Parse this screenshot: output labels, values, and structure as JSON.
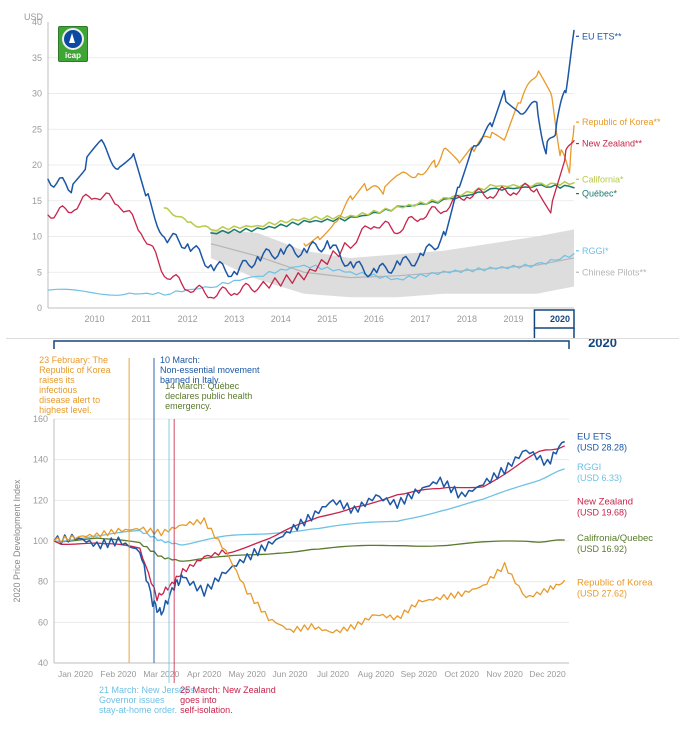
{
  "unit_label": "USD",
  "icap_label": "icap",
  "top_chart": {
    "type": "line",
    "xlim": [
      2009.5,
      2020.8
    ],
    "ylim": [
      0,
      40
    ],
    "ytick_step": 5,
    "xtick_years": [
      2010,
      2011,
      2012,
      2013,
      2014,
      2015,
      2016,
      2017,
      2018,
      2019,
      2020
    ],
    "background_color": "#ffffff",
    "grid_color": "#e6e6e6",
    "axis_color": "#bfbfbf",
    "axis_font_color": "#9a9a9a",
    "axis_fontsize": 9,
    "zoom_box_color": "#14477f",
    "zoom_box_label": "2020",
    "series": [
      {
        "key": "chinese_pilots",
        "label": "Chinese Pilots**",
        "color": "#b5b5b5",
        "type": "area",
        "fill": "#d9d9d9",
        "stroke_width": 1.2,
        "low": [
          [
            2013,
            7
          ],
          [
            2014,
            4
          ],
          [
            2015,
            2
          ],
          [
            2016,
            1.5
          ],
          [
            2017,
            1.5
          ],
          [
            2018,
            2
          ],
          [
            2019,
            2
          ],
          [
            2020,
            2
          ],
          [
            2020.8,
            3
          ]
        ],
        "high": [
          [
            2013,
            11
          ],
          [
            2014,
            10.5
          ],
          [
            2015,
            8
          ],
          [
            2016,
            7
          ],
          [
            2017,
            7.5
          ],
          [
            2018,
            8
          ],
          [
            2019,
            9
          ],
          [
            2020,
            10
          ],
          [
            2020.8,
            11
          ]
        ]
      },
      {
        "key": "rggi",
        "label": "RGGI*",
        "color": "#6fc1e4",
        "stroke_width": 1.2,
        "data": [
          [
            2009.5,
            2.5
          ],
          [
            2011,
            2
          ],
          [
            2012,
            2
          ],
          [
            2013,
            3
          ],
          [
            2014,
            4.5
          ],
          [
            2015,
            6
          ],
          [
            2016,
            5
          ],
          [
            2017,
            4
          ],
          [
            2018,
            5
          ],
          [
            2019,
            5.5
          ],
          [
            2020,
            6
          ],
          [
            2020.8,
            7.5
          ]
        ]
      },
      {
        "key": "quebec",
        "label": "Québec*",
        "color": "#1a7a6e",
        "stroke_width": 1.5,
        "data": [
          [
            2013,
            10.5
          ],
          [
            2014,
            11
          ],
          [
            2015,
            12
          ],
          [
            2016,
            12.5
          ],
          [
            2017,
            14
          ],
          [
            2018,
            15
          ],
          [
            2019,
            16.5
          ],
          [
            2020,
            17
          ],
          [
            2020.8,
            17
          ]
        ]
      },
      {
        "key": "california",
        "label": "California*",
        "color": "#b9c94a",
        "stroke_width": 1.5,
        "data": [
          [
            2012,
            14
          ],
          [
            2012.5,
            12
          ],
          [
            2013,
            11
          ],
          [
            2014,
            11.5
          ],
          [
            2015,
            12.5
          ],
          [
            2016,
            12.8
          ],
          [
            2017,
            14
          ],
          [
            2018,
            15.2
          ],
          [
            2019,
            17
          ],
          [
            2020,
            17.2
          ],
          [
            2020.8,
            17.5
          ]
        ]
      },
      {
        "key": "korea",
        "label": "Republic of Korea**",
        "color": "#e89a2a",
        "stroke_width": 1.3,
        "data": [
          [
            2015,
            9
          ],
          [
            2015.3,
            10
          ],
          [
            2015.6,
            12
          ],
          [
            2016,
            15
          ],
          [
            2016.3,
            17
          ],
          [
            2016.7,
            16
          ],
          [
            2017,
            18
          ],
          [
            2017.4,
            19
          ],
          [
            2017.8,
            20
          ],
          [
            2018,
            22
          ],
          [
            2018.3,
            20
          ],
          [
            2018.6,
            22
          ],
          [
            2019,
            24
          ],
          [
            2019.3,
            23
          ],
          [
            2019.6,
            28
          ],
          [
            2020,
            33
          ],
          [
            2020.3,
            30
          ],
          [
            2020.5,
            22
          ],
          [
            2020.7,
            19
          ],
          [
            2020.8,
            26
          ]
        ]
      },
      {
        "key": "newzealand",
        "label": "New Zealand**",
        "color": "#c8234a",
        "stroke_width": 1.3,
        "data": [
          [
            2009.5,
            13
          ],
          [
            2010,
            14
          ],
          [
            2010.5,
            16
          ],
          [
            2011,
            15
          ],
          [
            2011.5,
            11
          ],
          [
            2012,
            5
          ],
          [
            2012.5,
            3
          ],
          [
            2013,
            2
          ],
          [
            2013.5,
            2.5
          ],
          [
            2014,
            3
          ],
          [
            2015,
            4.5
          ],
          [
            2016,
            9
          ],
          [
            2016.5,
            12
          ],
          [
            2017,
            11
          ],
          [
            2017.5,
            13
          ],
          [
            2018,
            14
          ],
          [
            2018.5,
            16
          ],
          [
            2019,
            16
          ],
          [
            2019.5,
            16.5
          ],
          [
            2020,
            17
          ],
          [
            2020.3,
            14
          ],
          [
            2020.6,
            21
          ],
          [
            2020.8,
            24
          ]
        ]
      },
      {
        "key": "euets",
        "label": "EU ETS**",
        "color": "#1c57a5",
        "stroke_width": 1.5,
        "data": [
          [
            2009.5,
            18
          ],
          [
            2010,
            17
          ],
          [
            2010.3,
            20
          ],
          [
            2010.6,
            23
          ],
          [
            2011,
            20
          ],
          [
            2011.3,
            22
          ],
          [
            2011.6,
            16
          ],
          [
            2012,
            10
          ],
          [
            2012.5,
            9
          ],
          [
            2013,
            6
          ],
          [
            2013.5,
            5
          ],
          [
            2014,
            7
          ],
          [
            2014.5,
            8
          ],
          [
            2015,
            8
          ],
          [
            2015.5,
            9
          ],
          [
            2016,
            6
          ],
          [
            2016.5,
            5
          ],
          [
            2017,
            6
          ],
          [
            2017.5,
            7
          ],
          [
            2018,
            10
          ],
          [
            2018.3,
            17
          ],
          [
            2018.6,
            23
          ],
          [
            2019,
            25
          ],
          [
            2019.3,
            30
          ],
          [
            2019.6,
            28
          ],
          [
            2020,
            28
          ],
          [
            2020.2,
            22
          ],
          [
            2020.4,
            25
          ],
          [
            2020.6,
            30
          ],
          [
            2020.8,
            38
          ]
        ]
      }
    ],
    "legend_order": [
      "euets",
      "korea",
      "newzealand",
      "california",
      "quebec",
      "rggi",
      "chinese_pilots"
    ]
  },
  "bottom_chart": {
    "type": "line",
    "y_axis_label": "2020 Price Development Index",
    "y_axis_label_fontsize": 9,
    "xlim": [
      0,
      12
    ],
    "ylim": [
      40,
      160
    ],
    "ytick_step": 20,
    "months": [
      "Jan 2020",
      "Feb 2020",
      "Mar 2020",
      "Apr 2020",
      "May 2020",
      "Jun 2020",
      "Jul 2020",
      "Aug 2020",
      "Sep 2020",
      "Oct 2020",
      "Nov 2020",
      "Dec 2020"
    ],
    "background_color": "#ffffff",
    "grid_color": "#e6e6e6",
    "axis_color": "#bfbfbf",
    "legend": {
      "euets": {
        "label1": "EU ETS",
        "label2": "(USD 28.28)",
        "color": "#1c57a5"
      },
      "rggi": {
        "label1": "RGGI",
        "label2": "(USD 6.33)",
        "color": "#6fc1e4"
      },
      "nz": {
        "label1": "New Zealand",
        "label2": "(USD 19.68)",
        "color": "#c8234a"
      },
      "caqc": {
        "label1": "Califronia/Quebec",
        "label2": "(USD 16.92)",
        "color": "#5a7a2e"
      },
      "korea": {
        "label1": "Republic of Korea",
        "label2": "(USD 27.62)",
        "color": "#e89a2a"
      }
    },
    "series": [
      {
        "key": "caqc",
        "color": "#5a7a2e",
        "stroke_width": 1.3,
        "data": [
          [
            0,
            100
          ],
          [
            1,
            101
          ],
          [
            2,
            99
          ],
          [
            2.5,
            92
          ],
          [
            3,
            90
          ],
          [
            4,
            92
          ],
          [
            5,
            94
          ],
          [
            6,
            96
          ],
          [
            7,
            97
          ],
          [
            8,
            98
          ],
          [
            9,
            98
          ],
          [
            10,
            99
          ],
          [
            11,
            100
          ],
          [
            11.9,
            100
          ]
        ]
      },
      {
        "key": "rggi",
        "color": "#6fc1e4",
        "stroke_width": 1.3,
        "data": [
          [
            0,
            100
          ],
          [
            1,
            102
          ],
          [
            2,
            105
          ],
          [
            2.5,
            100
          ],
          [
            3,
            98
          ],
          [
            4,
            102
          ],
          [
            5,
            104
          ],
          [
            6,
            106
          ],
          [
            7,
            108
          ],
          [
            8,
            110
          ],
          [
            9,
            115
          ],
          [
            10,
            120
          ],
          [
            11,
            128
          ],
          [
            11.9,
            135
          ]
        ]
      },
      {
        "key": "nz",
        "color": "#c8234a",
        "stroke_width": 1.3,
        "data": [
          [
            0,
            100
          ],
          [
            1,
            98
          ],
          [
            2,
            96
          ],
          [
            2.4,
            72
          ],
          [
            2.7,
            78
          ],
          [
            3,
            85
          ],
          [
            3.5,
            92
          ],
          [
            4,
            95
          ],
          [
            5,
            100
          ],
          [
            6,
            110
          ],
          [
            7,
            118
          ],
          [
            8,
            122
          ],
          [
            9,
            125
          ],
          [
            10,
            128
          ],
          [
            11,
            140
          ],
          [
            11.9,
            148
          ]
        ]
      },
      {
        "key": "euets",
        "color": "#1c57a5",
        "stroke_width": 1.5,
        "data": [
          [
            0,
            100
          ],
          [
            0.5,
            102
          ],
          [
            1,
            98
          ],
          [
            1.5,
            100
          ],
          [
            2,
            95
          ],
          [
            2.3,
            70
          ],
          [
            2.5,
            64
          ],
          [
            2.8,
            78
          ],
          [
            3,
            82
          ],
          [
            3.5,
            75
          ],
          [
            4,
            85
          ],
          [
            4.5,
            92
          ],
          [
            5,
            98
          ],
          [
            5.5,
            105
          ],
          [
            6,
            112
          ],
          [
            6.5,
            120
          ],
          [
            7,
            115
          ],
          [
            7.5,
            122
          ],
          [
            8,
            118
          ],
          [
            8.5,
            125
          ],
          [
            9,
            130
          ],
          [
            9.5,
            122
          ],
          [
            10,
            128
          ],
          [
            10.5,
            135
          ],
          [
            11,
            145
          ],
          [
            11.5,
            138
          ],
          [
            11.9,
            150
          ]
        ]
      },
      {
        "key": "korea",
        "color": "#e89a2a",
        "stroke_width": 1.3,
        "data": [
          [
            0,
            100
          ],
          [
            0.5,
            102
          ],
          [
            1,
            103
          ],
          [
            1.5,
            105
          ],
          [
            2,
            106
          ],
          [
            2.5,
            104
          ],
          [
            3,
            108
          ],
          [
            3.5,
            110
          ],
          [
            4,
            95
          ],
          [
            4.5,
            75
          ],
          [
            5,
            62
          ],
          [
            5.5,
            56
          ],
          [
            6,
            58
          ],
          [
            6.5,
            55
          ],
          [
            7,
            58
          ],
          [
            7.5,
            64
          ],
          [
            8,
            62
          ],
          [
            8.5,
            70
          ],
          [
            9,
            72
          ],
          [
            9.5,
            74
          ],
          [
            10,
            78
          ],
          [
            10.5,
            88
          ],
          [
            11,
            72
          ],
          [
            11.5,
            76
          ],
          [
            11.9,
            80
          ]
        ]
      }
    ],
    "annotations_top": [
      {
        "key": "korea_alert",
        "color": "#e89a2a",
        "x": 1.75,
        "text": "23 February: The Republic of Korea raises its infectious disease alert to highest level."
      },
      {
        "key": "italy",
        "color": "#1c57a5",
        "x": 2.33,
        "text": "10 March: Non-essential movement banned in Italy."
      },
      {
        "key": "quebec_emerg",
        "color": "#5a7a2e",
        "x": 2.45,
        "text": "14 March: Québec declares public health emergency."
      }
    ],
    "annotations_bottom": [
      {
        "key": "nj",
        "color": "#6fc1e4",
        "x": 2.68,
        "text": "21 March: New Jersey's Governor issues stay-at-home order."
      },
      {
        "key": "nz_iso",
        "color": "#c8234a",
        "x": 2.8,
        "text": "25 March: New Zealand goes into self-isolation."
      }
    ]
  }
}
